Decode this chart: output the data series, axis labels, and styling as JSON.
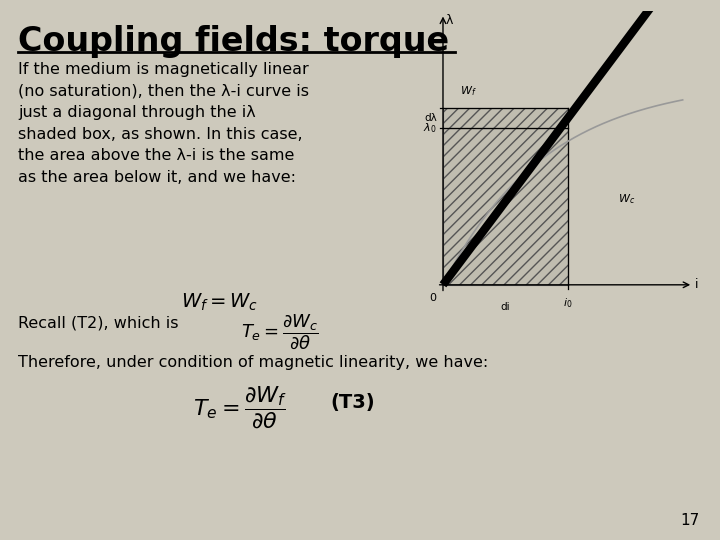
{
  "title": "Coupling fields: torque",
  "bg_color": "#cdc9bc",
  "title_color": "#000000",
  "title_fontsize": 24,
  "body_text_1": "If the medium is magnetically linear\n(no saturation), then the λ-i curve is\njust a diagonal through the iλ\nshaded box, as shown. In this case,\nthe area above the λ-i is the same\nas the area below it, and we have:",
  "formula_1": "$W_f = W_c$",
  "recall_text": "Recall (T2), which is",
  "formula_2": "$T_e = \\dfrac{\\partial W_c}{\\partial \\theta}$",
  "bottom_text": "Therefore, under condition of magnetic linearity, we have:",
  "formula_3": "$T_e = \\dfrac{\\partial W_f}{\\partial \\theta}$",
  "label_T3": "(T3)",
  "page_number": "17",
  "diagram": {
    "x_axis_label": "i",
    "y_axis_label": "λ",
    "lambda_0": 0.55,
    "i_0": 0.6,
    "dlam": 0.07,
    "hatch": "///",
    "curve_label_Wf": "$W_f$",
    "curve_label_Wc": "$W_c$",
    "label_lambda0": "$\\lambda_0$",
    "label_i0": "$i_0$",
    "label_dA": "dλ",
    "label_di": "di",
    "label_origin": "0"
  }
}
